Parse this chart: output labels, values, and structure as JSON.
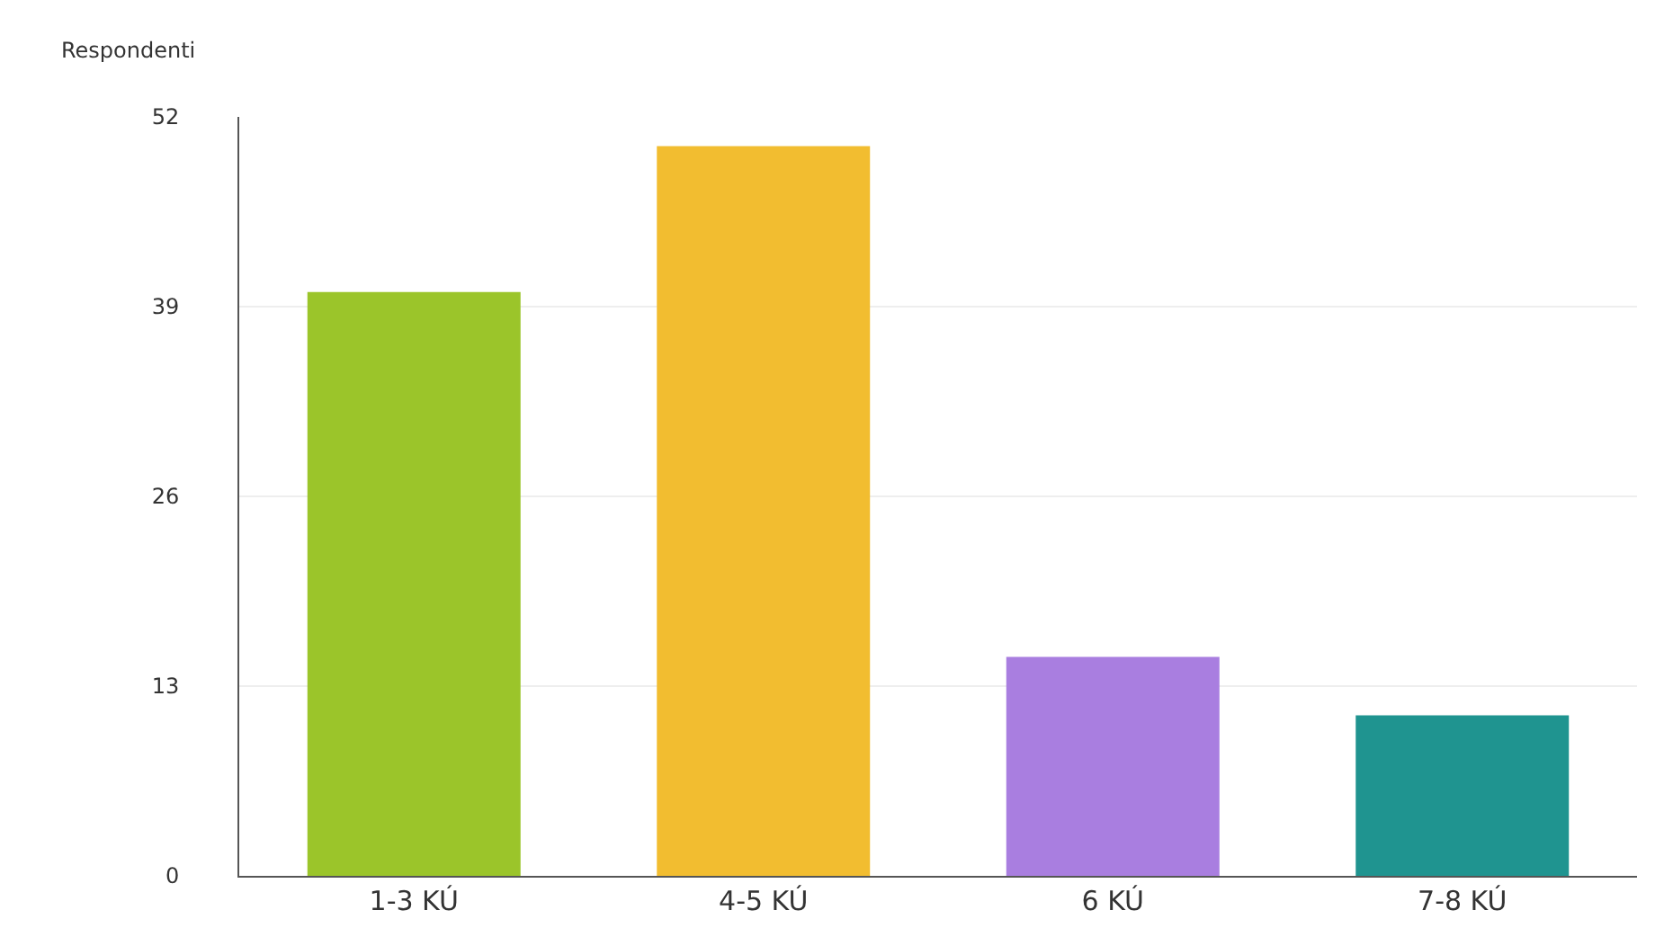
{
  "chart_data": {
    "type": "bar",
    "ylabel": "Respondenti",
    "categories": [
      "1-3 KÚ",
      "4-5 KÚ",
      "6 KÚ",
      "7-8 KÚ"
    ],
    "values": [
      40,
      50,
      15,
      11
    ],
    "colors": [
      "#9bc52a",
      "#f2bd30",
      "#a97ee0",
      "#1f9490"
    ],
    "ylim": [
      0,
      52
    ],
    "yticks": [
      0,
      13,
      26,
      39,
      52
    ],
    "grid": "y"
  }
}
